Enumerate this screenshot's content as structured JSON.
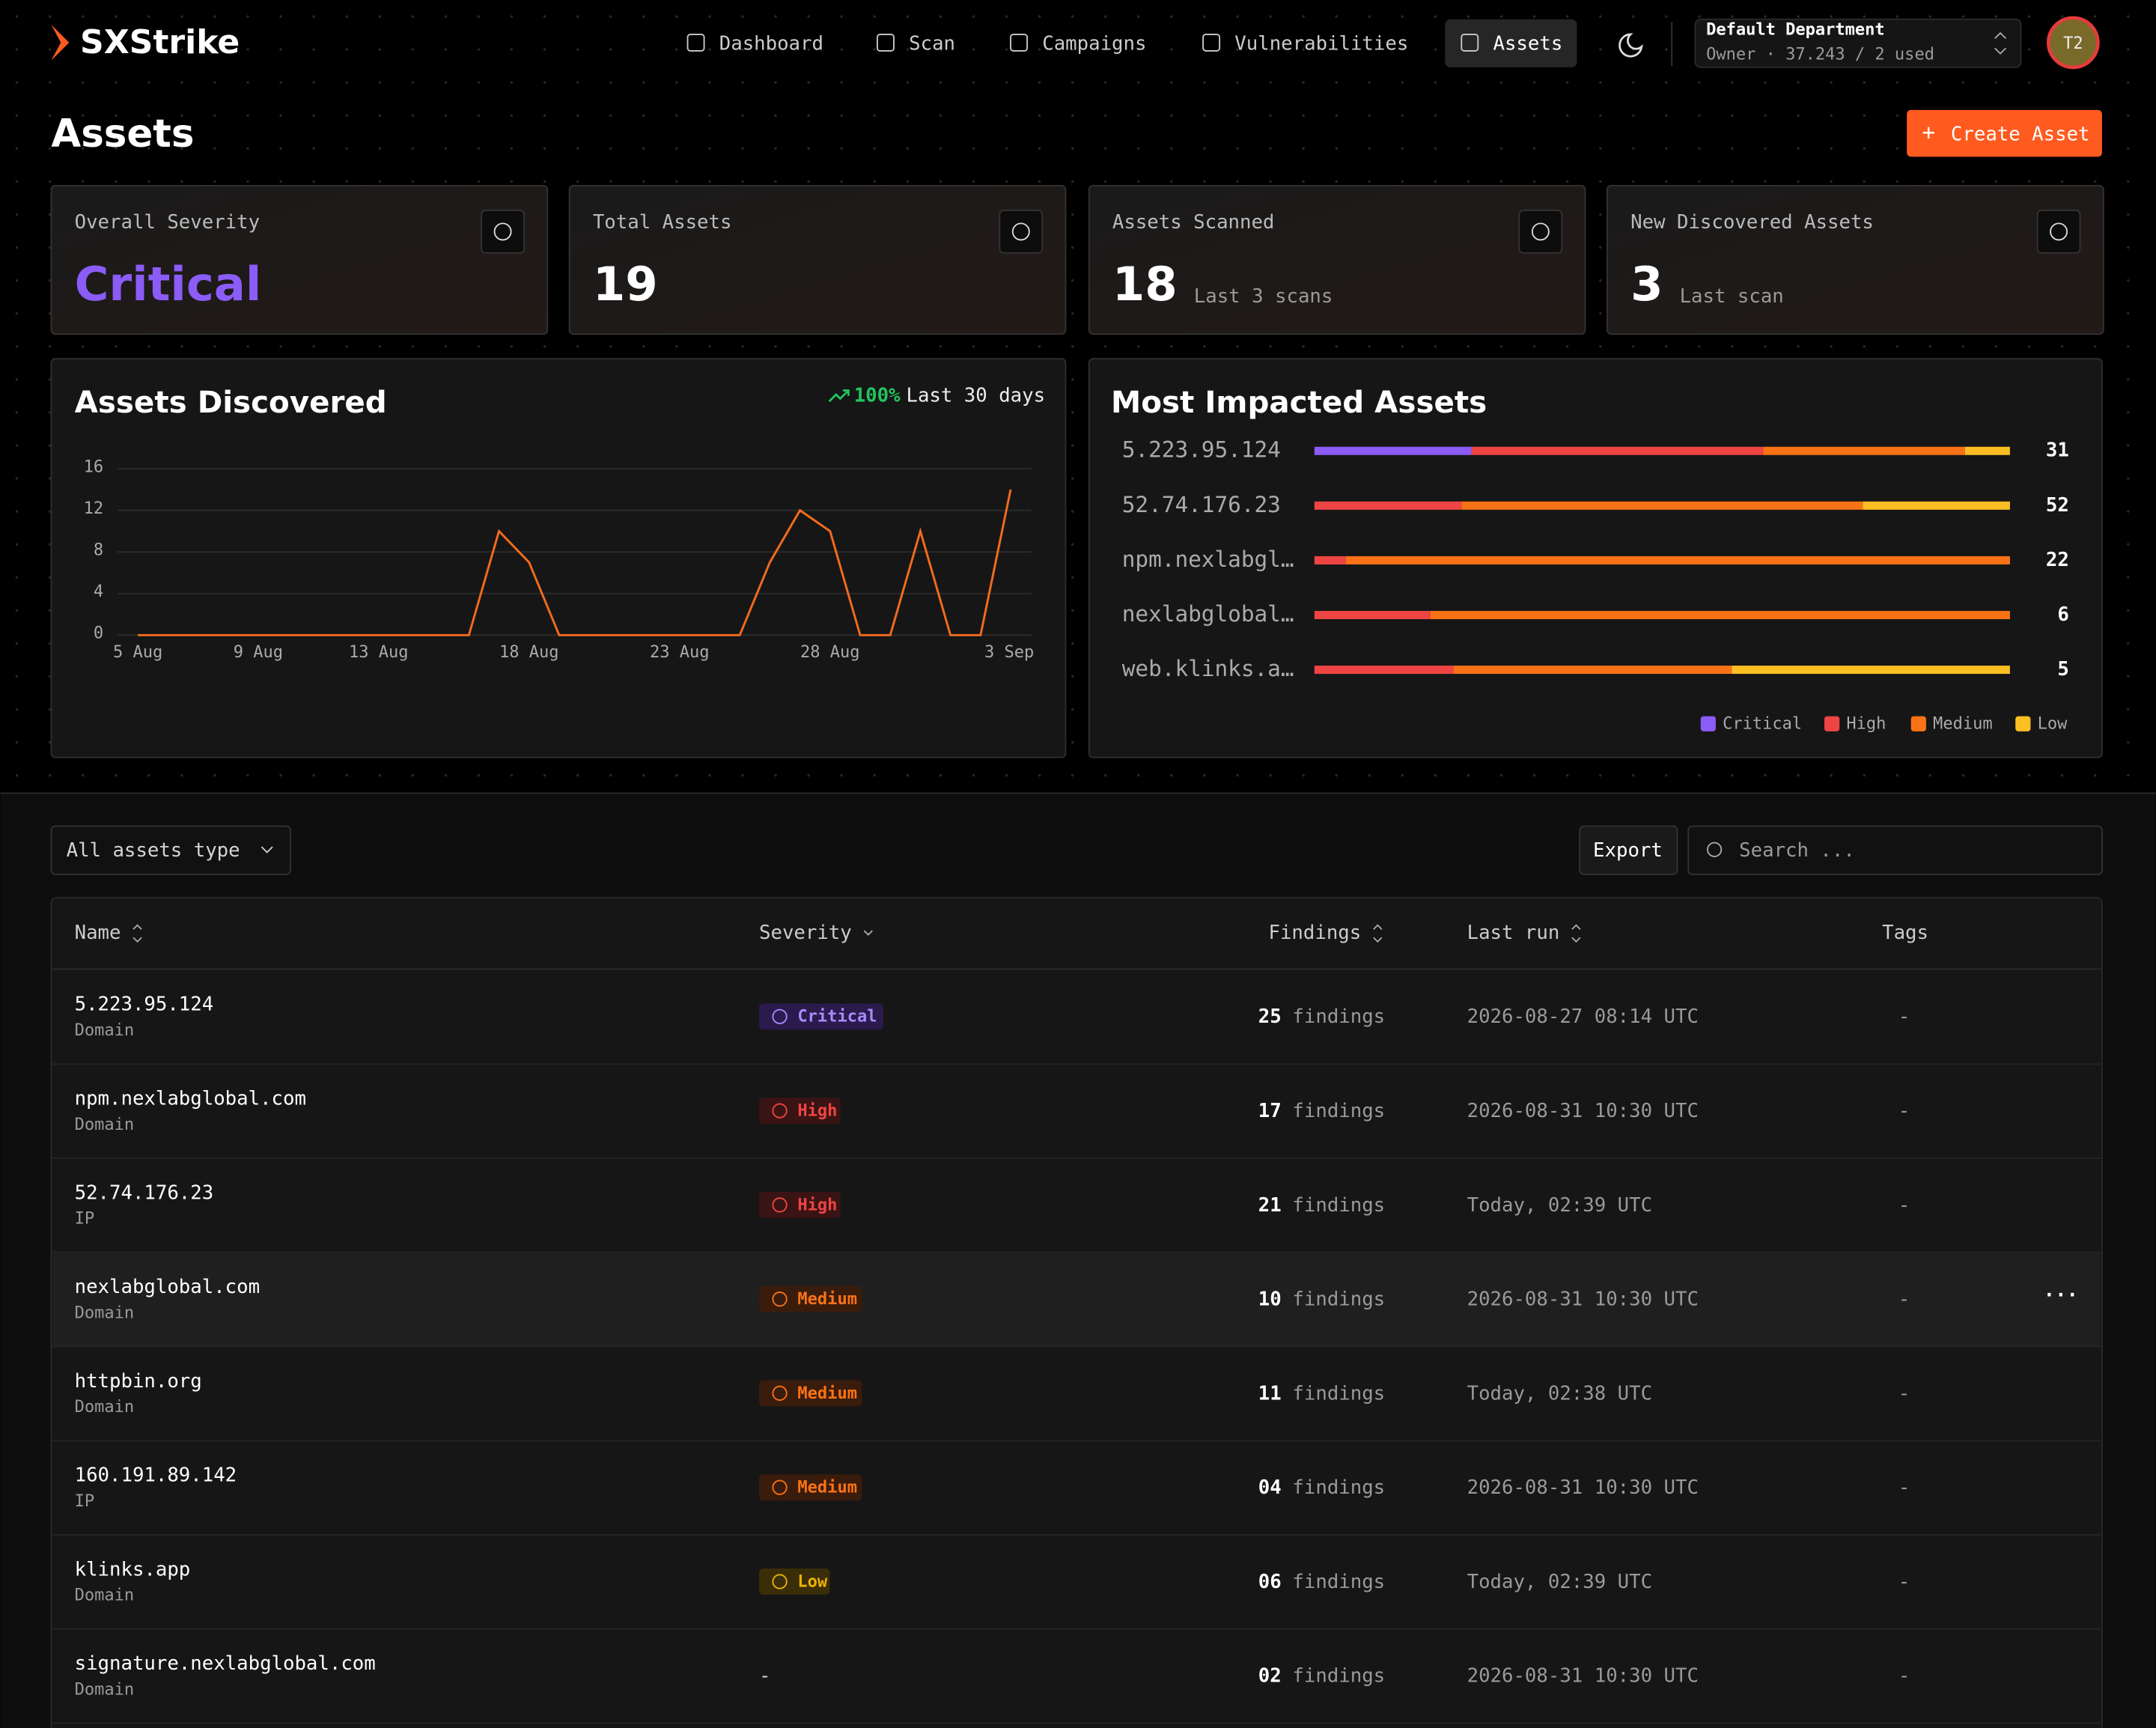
{
  "nav": {
    "brand": "SXStrike",
    "items": [
      "Dashboard",
      "Scan",
      "Campaigns",
      "Vulnerabilities",
      "Assets"
    ],
    "active": 4,
    "department": "Default Department",
    "department_meta": "Owner · 37.243 / 2 used",
    "avatar": "T2"
  },
  "header": {
    "title": "Assets",
    "create_button": "Create Asset"
  },
  "stats": [
    {
      "label": "Overall Severity",
      "value": "Critical"
    },
    {
      "label": "Total Assets",
      "value": "19"
    },
    {
      "label": "Assets Scanned",
      "value": "18",
      "note": "Last 3 scans"
    },
    {
      "label": "New Discovered Assets",
      "value": "3",
      "note": "Last scan"
    }
  ],
  "assets_discovered": {
    "type": "line",
    "title": "Assets Discovered",
    "change": "100%",
    "period": "Last 30 days",
    "categories": [
      "5 Aug",
      null,
      null,
      null,
      "9 Aug",
      null,
      null,
      null,
      "13 Aug",
      null,
      null,
      null,
      null,
      "18 Aug",
      null,
      null,
      null,
      null,
      "23 Aug",
      null,
      null,
      null,
      null,
      "28 Aug",
      null,
      null,
      null,
      null,
      null,
      "3 Sep"
    ],
    "values": [
      0,
      0,
      0,
      0,
      0,
      0,
      0,
      0,
      0,
      0,
      0,
      0,
      10,
      7,
      0,
      0,
      0,
      0,
      0,
      0,
      0,
      7,
      12,
      10,
      0,
      0,
      10,
      0,
      0,
      14
    ],
    "ylim": [
      0,
      16
    ],
    "yticks": [
      0,
      4,
      8,
      12,
      16
    ],
    "grid": true,
    "color": "#f26b1d"
  },
  "most_impacted": {
    "type": "stacked-bar",
    "title": "Most Impacted Assets",
    "categories": [
      "5.223.95.124",
      "52.74.176.23",
      "npm.nexlabgl…",
      "nexlabglobal…",
      "web.klinks.a…"
    ],
    "totals": [
      31,
      52,
      22,
      6,
      5
    ],
    "series": [
      {
        "name": "Critical",
        "color": "#8b5cf6",
        "values": [
          7,
          0,
          0,
          0,
          0
        ]
      },
      {
        "name": "High",
        "color": "#ef4444",
        "values": [
          13,
          11,
          1,
          1,
          1
        ]
      },
      {
        "name": "Medium",
        "color": "#f97316",
        "values": [
          9,
          30,
          21,
          5,
          2
        ]
      },
      {
        "name": "Low",
        "color": "#fbbf24",
        "values": [
          2,
          11,
          0,
          0,
          2
        ]
      }
    ]
  },
  "toolbar": {
    "filter": "All assets type",
    "export": "Export",
    "search_placeholder": "Search ..."
  },
  "table": {
    "columns": [
      "Name",
      "Severity",
      "Findings",
      "Last run",
      "Tags"
    ],
    "findings_unit": "findings",
    "rows": [
      {
        "name": "5.223.95.124",
        "kind": "Domain",
        "severity": "Critical",
        "findings": "25",
        "last_run": "2026-08-27 08:14 UTC",
        "tags": "-"
      },
      {
        "name": "npm.nexlabglobal.com",
        "kind": "Domain",
        "severity": "High",
        "findings": "17",
        "last_run": "2026-08-31 10:30 UTC",
        "tags": "-"
      },
      {
        "name": "52.74.176.23",
        "kind": "IP",
        "severity": "High",
        "findings": "21",
        "last_run": "Today, 02:39 UTC",
        "tags": "-"
      },
      {
        "name": "nexlabglobal.com",
        "kind": "Domain",
        "severity": "Medium",
        "findings": "10",
        "last_run": "2026-08-31 10:30 UTC",
        "tags": "-"
      },
      {
        "name": "httpbin.org",
        "kind": "Domain",
        "severity": "Medium",
        "findings": "11",
        "last_run": "Today, 02:38 UTC",
        "tags": "-"
      },
      {
        "name": "160.191.89.142",
        "kind": "IP",
        "severity": "Medium",
        "findings": "04",
        "last_run": "2026-08-31 10:30 UTC",
        "tags": "-"
      },
      {
        "name": "klinks.app",
        "kind": "Domain",
        "severity": "Low",
        "findings": "06",
        "last_run": "Today, 02:39 UTC",
        "tags": "-"
      },
      {
        "name": "signature.nexlabglobal.com",
        "kind": "Domain",
        "severity": "-",
        "findings": "02",
        "last_run": "2026-08-31 10:30 UTC",
        "tags": "-"
      }
    ]
  }
}
